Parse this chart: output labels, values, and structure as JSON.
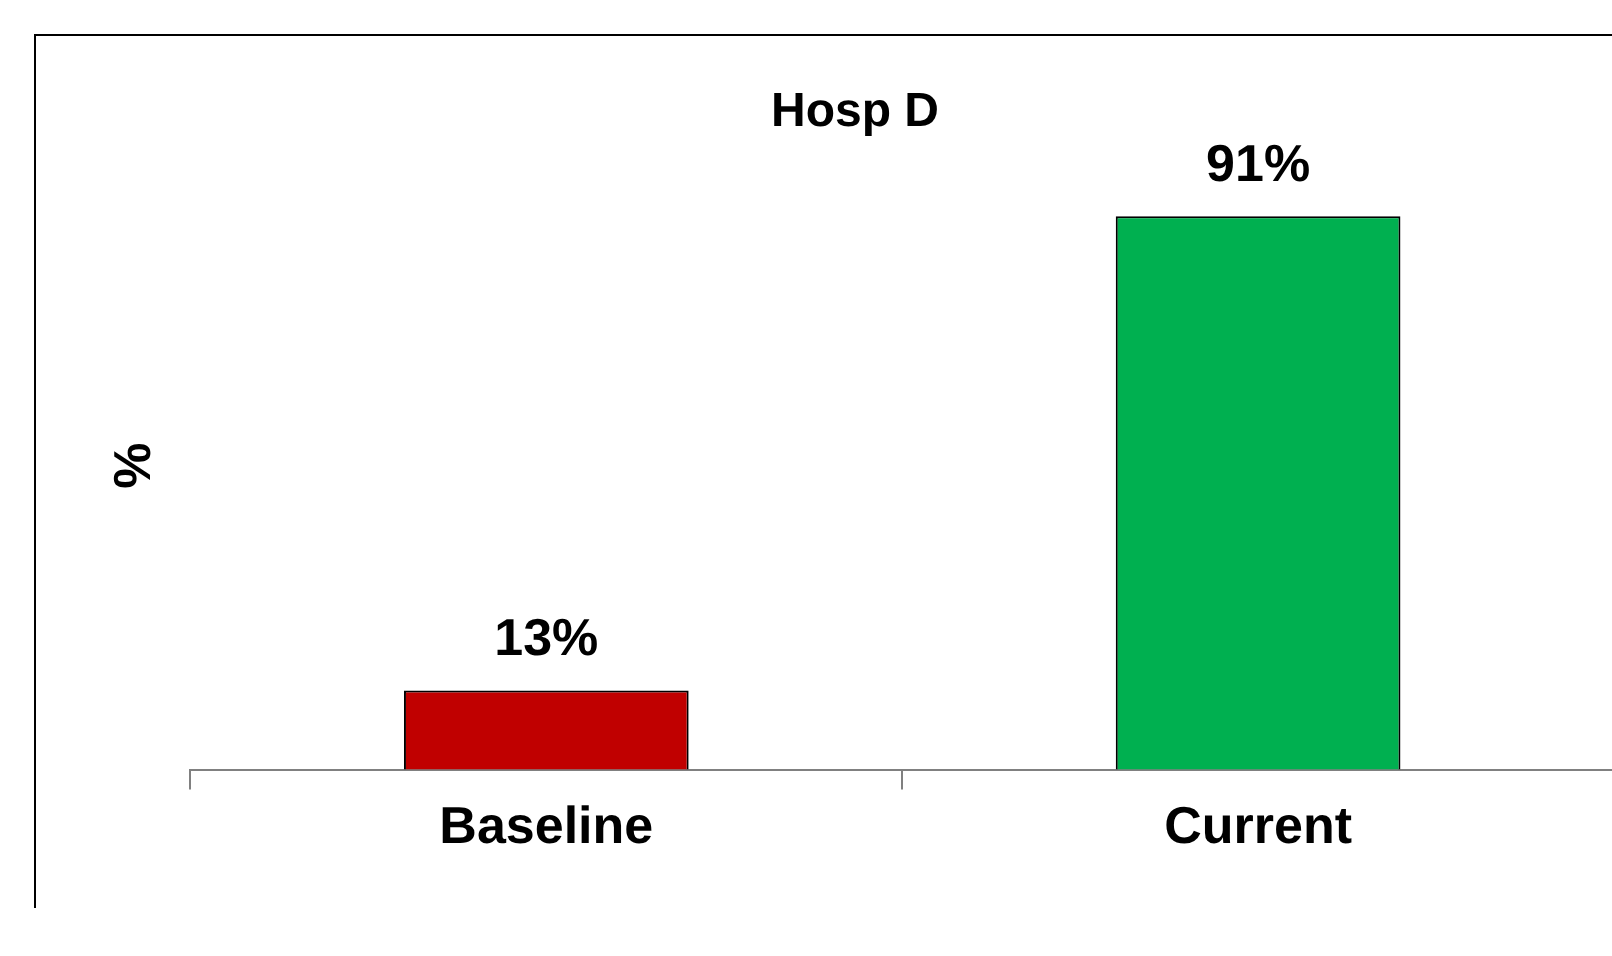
{
  "chart_data": {
    "type": "bar",
    "title": "Hosp D",
    "ylabel": "%",
    "categories": [
      "Baseline",
      "Current"
    ],
    "values": [
      13,
      91
    ],
    "colors": [
      "#c00000",
      "#00b050"
    ],
    "value_labels": [
      "13%",
      "91%"
    ],
    "grid": false,
    "legend": false
  }
}
